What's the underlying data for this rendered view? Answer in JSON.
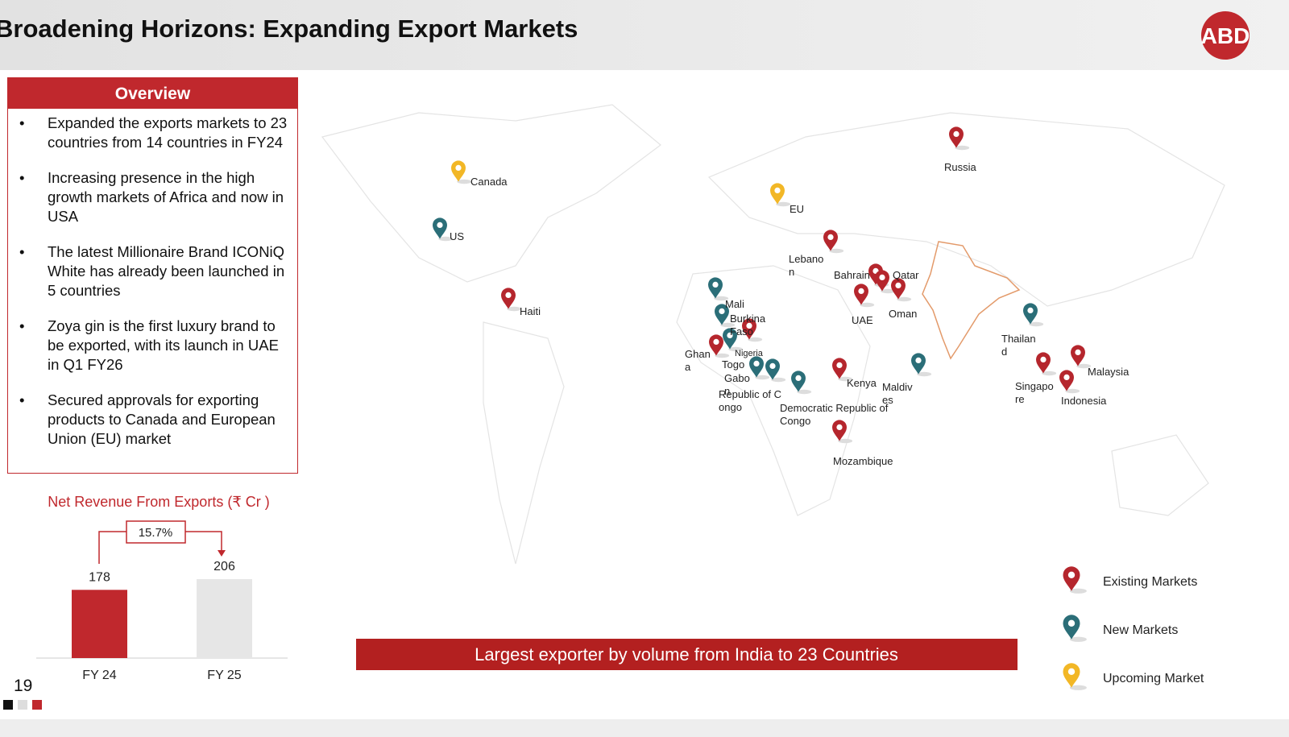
{
  "header": {
    "title": "Broadening Horizons: Expanding Export Markets",
    "logo": "ABD"
  },
  "overview": {
    "heading": "Overview",
    "bullets": [
      "Expanded the exports markets to 23 countries from 14 countries in FY24",
      "Increasing presence in the high growth markets of Africa and now in USA",
      "The latest Millionaire Brand ICONiQ White has already been launched in 5 countries",
      "Zoya gin is the first luxury brand to be exported, with its launch in UAE in Q1 FY26",
      "Secured approvals for exporting products to Canada and European Union (EU) market"
    ]
  },
  "chart_data": {
    "type": "bar",
    "title": "Net Revenue From Exports (₹ Cr )",
    "categories": [
      "FY 24",
      "FY 25"
    ],
    "values": [
      178,
      206
    ],
    "colors": [
      "#c0282d",
      "#e6e6e6"
    ],
    "growth_label": "15.7%"
  },
  "map": {
    "markets": [
      {
        "label": "Russia",
        "color": "#b5262d"
      },
      {
        "label": "Canada",
        "color": "#f2b726"
      },
      {
        "label": "EU",
        "color": "#f2b726"
      },
      {
        "label": "US",
        "color": "#2b6e78"
      },
      {
        "label": "Lebanon",
        "color": "#b5262d"
      },
      {
        "label": "Bahrain",
        "color": "#b5262d"
      },
      {
        "label": "Qatar",
        "color": "#b5262d"
      },
      {
        "label": "Oman",
        "color": "#b5262d"
      },
      {
        "label": "UAE",
        "color": "#b5262d"
      },
      {
        "label": "Haiti",
        "color": "#b5262d"
      },
      {
        "label": "Mali",
        "color": "#2b6e78"
      },
      {
        "label": "Burkina Faso",
        "color": "#2b6e78"
      },
      {
        "label": "Nigeria",
        "color": "#b5262d"
      },
      {
        "label": "Ghana",
        "color": "#b5262d"
      },
      {
        "label": "Togo",
        "color": "#2b6e78"
      },
      {
        "label": "Gabon",
        "color": "#2b6e78"
      },
      {
        "label": "Republic of Congo",
        "color": "#2b6e78"
      },
      {
        "label": "Democratic Republic of Congo",
        "color": "#2b6e78"
      },
      {
        "label": "Kenya",
        "color": "#b5262d"
      },
      {
        "label": "Maldives",
        "color": "#2b6e78"
      },
      {
        "label": "Mozambique",
        "color": "#b5262d"
      },
      {
        "label": "Thailand",
        "color": "#2b6e78"
      },
      {
        "label": "Singapore",
        "color": "#b5262d"
      },
      {
        "label": "Malaysia",
        "color": "#b5262d"
      },
      {
        "label": "Indonesia",
        "color": "#b5262d"
      }
    ],
    "legend": [
      {
        "label": "Existing Markets",
        "color": "#b5262d"
      },
      {
        "label": "New Markets",
        "color": "#2b6e78"
      },
      {
        "label": "Upcoming Market",
        "color": "#f2b726"
      }
    ],
    "banner": "Largest exporter by volume from India to 23 Countries"
  },
  "page_number": "19"
}
